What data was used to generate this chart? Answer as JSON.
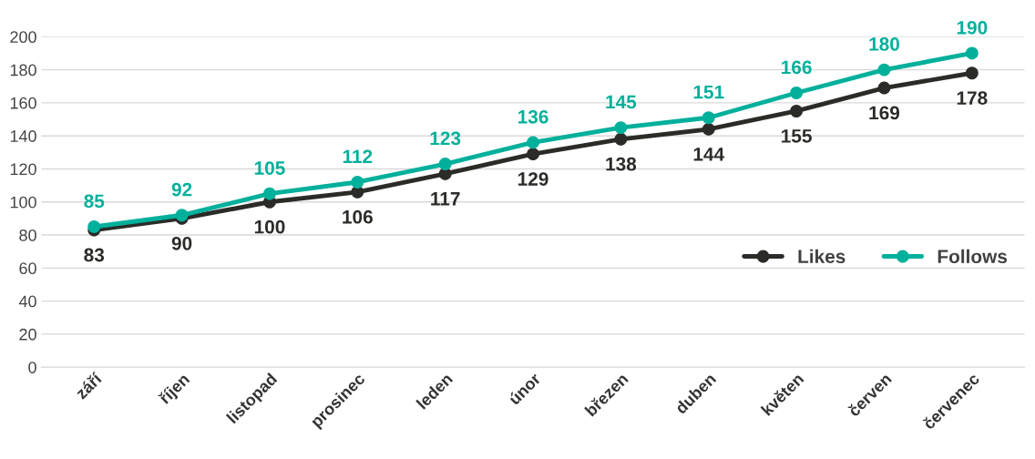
{
  "chart_data": {
    "type": "line",
    "categories": [
      "září",
      "říjen",
      "listopad",
      "prosinec",
      "leden",
      "únor",
      "březen",
      "duben",
      "květen",
      "červen",
      "červenec"
    ],
    "series": [
      {
        "name": "Likes",
        "color": "#2b2b28",
        "values": [
          83,
          90,
          100,
          106,
          117,
          129,
          138,
          144,
          155,
          169,
          178
        ]
      },
      {
        "name": "Follows",
        "color": "#00b09b",
        "values": [
          85,
          92,
          105,
          112,
          123,
          136,
          145,
          151,
          166,
          180,
          190
        ]
      }
    ],
    "ylim": [
      0,
      200
    ],
    "yticks": [
      0,
      20,
      40,
      60,
      80,
      100,
      120,
      140,
      160,
      180,
      200
    ],
    "grid": "y",
    "legend": "right",
    "marker": "circle",
    "line_style": "solid",
    "data_labels": true
  }
}
